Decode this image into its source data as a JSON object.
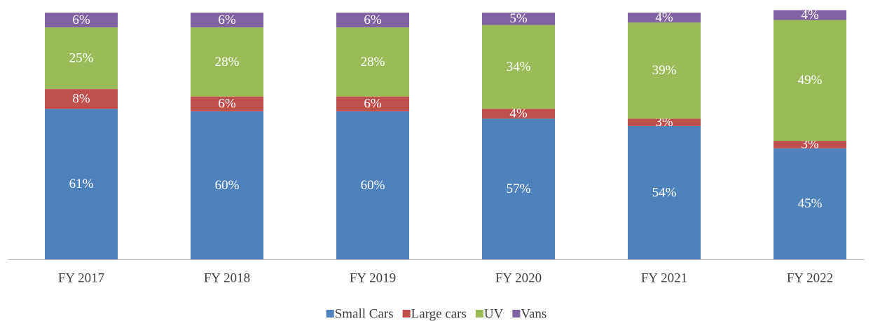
{
  "chart_data": {
    "type": "stacked_bar",
    "categories": [
      "FY 2017",
      "FY 2018",
      "FY 2019",
      "FY 2020",
      "FY 2021",
      "FY 2022"
    ],
    "series": [
      {
        "name": "Small Cars",
        "color": "#4f81bd",
        "values": [
          61,
          60,
          60,
          57,
          54,
          45
        ],
        "value_labels": [
          "61%",
          "60%",
          "60%",
          "57%",
          "54%",
          "45%"
        ]
      },
      {
        "name": "Large cars",
        "color": "#c0504d",
        "values": [
          8,
          6,
          6,
          4,
          3,
          3
        ],
        "value_labels": [
          "8%",
          "6%",
          "6%",
          "4%",
          "3%",
          "3%"
        ]
      },
      {
        "name": "UV",
        "color": "#9bbb59",
        "values": [
          25,
          28,
          28,
          34,
          39,
          49
        ],
        "value_labels": [
          "25%",
          "28%",
          "28%",
          "34%",
          "39%",
          "49%"
        ]
      },
      {
        "name": "Vans",
        "color": "#8064a2",
        "values": [
          6,
          6,
          6,
          5,
          4,
          4
        ],
        "value_labels": [
          "6%",
          "6%",
          "6%",
          "5%",
          "4%",
          "4%"
        ]
      }
    ],
    "ylim": [
      0,
      100
    ],
    "legend": "bottom"
  }
}
